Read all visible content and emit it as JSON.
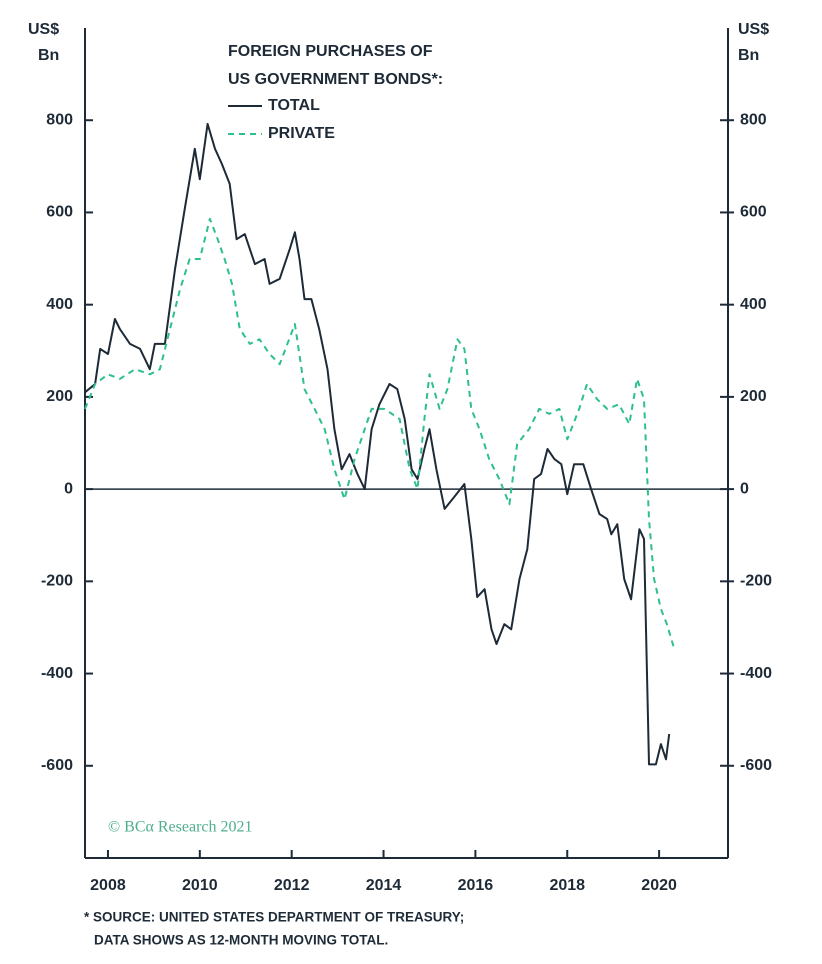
{
  "chart_data": {
    "type": "line",
    "title": [
      "FOREIGN PURCHASES OF",
      "US GOVERNMENT BONDS*:"
    ],
    "y_label": [
      "US$",
      "Bn"
    ],
    "y2_label": [
      "US$",
      "Bn"
    ],
    "xlim": [
      2007.5,
      2021.5
    ],
    "xticks": [
      2008,
      2010,
      2012,
      2014,
      2016,
      2018,
      2020
    ],
    "ylim": [
      -800,
      1000
    ],
    "yticks": [
      -600,
      -400,
      -200,
      0,
      200,
      400,
      600,
      800
    ],
    "y2lim": [
      -800,
      1000
    ],
    "y2ticks": [
      -600,
      -400,
      -200,
      0,
      200,
      400,
      600,
      800
    ],
    "series": [
      {
        "name": "TOTAL",
        "color": "#1e2b37",
        "dash": false,
        "x": [
          2007.5,
          2007.72,
          2007.83,
          2008.0,
          2008.15,
          2008.26,
          2008.48,
          2008.7,
          2008.91,
          2009.02,
          2009.24,
          2009.46,
          2009.67,
          2009.89,
          2010.0,
          2010.17,
          2010.33,
          2010.48,
          2010.65,
          2010.8,
          2010.98,
          2011.2,
          2011.41,
          2011.52,
          2011.74,
          2011.96,
          2012.07,
          2012.17,
          2012.28,
          2012.43,
          2012.6,
          2012.78,
          2012.93,
          2013.09,
          2013.26,
          2013.43,
          2013.59,
          2013.74,
          2013.91,
          2014.13,
          2014.3,
          2014.46,
          2014.61,
          2014.74,
          2014.89,
          2015.0,
          2015.15,
          2015.33,
          2015.54,
          2015.76,
          2015.91,
          2016.04,
          2016.2,
          2016.35,
          2016.46,
          2016.63,
          2016.78,
          2016.96,
          2017.13,
          2017.28,
          2017.43,
          2017.57,
          2017.72,
          2017.87,
          2018.0,
          2018.15,
          2018.35,
          2018.52,
          2018.7,
          2018.87,
          2018.96,
          2019.09,
          2019.24,
          2019.39,
          2019.57,
          2019.67,
          2019.78,
          2019.93,
          2020.04,
          2020.15,
          2020.22
        ],
        "values": [
          210,
          228,
          304,
          293,
          369,
          347,
          315,
          304,
          260,
          315,
          315,
          477,
          607,
          738,
          672,
          792,
          738,
          705,
          662,
          542,
          553,
          488,
          499,
          445,
          456,
          521,
          557,
          499,
          412,
          412,
          347,
          260,
          130,
          43,
          76,
          33,
          0,
          130,
          184,
          228,
          217,
          152,
          43,
          22,
          87,
          130,
          43,
          -43,
          -17,
          11,
          -108,
          -234,
          -217,
          -304,
          -336,
          -293,
          -304,
          -195,
          -130,
          22,
          33,
          87,
          65,
          54,
          -11,
          54,
          54,
          0,
          -54,
          -65,
          -98,
          -76,
          -195,
          -239,
          -87,
          -108,
          -597,
          -597,
          -553,
          -586,
          -531
        ]
      },
      {
        "name": "PRIVATE",
        "color": "#2dbf8e",
        "dash": true,
        "x": [
          2007.5,
          2007.72,
          2008.0,
          2008.26,
          2008.59,
          2008.91,
          2009.13,
          2009.35,
          2009.57,
          2009.78,
          2010.0,
          2010.22,
          2010.39,
          2010.54,
          2010.7,
          2010.87,
          2011.09,
          2011.3,
          2011.52,
          2011.74,
          2012.07,
          2012.28,
          2012.5,
          2012.72,
          2012.93,
          2013.15,
          2013.37,
          2013.59,
          2013.74,
          2014.02,
          2014.35,
          2014.57,
          2014.74,
          2014.89,
          2015.0,
          2015.22,
          2015.39,
          2015.61,
          2015.76,
          2015.91,
          2016.09,
          2016.3,
          2016.52,
          2016.74,
          2016.91,
          2017.17,
          2017.39,
          2017.61,
          2017.83,
          2018.0,
          2018.26,
          2018.43,
          2018.65,
          2018.87,
          2019.13,
          2019.35,
          2019.52,
          2019.67,
          2019.78,
          2019.89,
          2020.04,
          2020.17,
          2020.33
        ],
        "values": [
          174,
          228,
          249,
          239,
          260,
          249,
          260,
          347,
          434,
          499,
          499,
          586,
          542,
          499,
          445,
          347,
          315,
          325,
          293,
          271,
          358,
          217,
          174,
          130,
          43,
          -22,
          65,
          130,
          174,
          174,
          152,
          43,
          0,
          152,
          249,
          174,
          217,
          325,
          304,
          174,
          130,
          65,
          22,
          -33,
          98,
          130,
          174,
          163,
          174,
          108,
          174,
          228,
          195,
          174,
          184,
          141,
          239,
          195,
          -65,
          -195,
          -260,
          -293,
          -347
        ]
      }
    ],
    "watermark": "© BCα Research 2021",
    "footnote": [
      "* SOURCE: UNITED STATES DEPARTMENT OF TREASURY;",
      "DATA SHOWS AS 12-MONTH MOVING TOTAL."
    ]
  }
}
